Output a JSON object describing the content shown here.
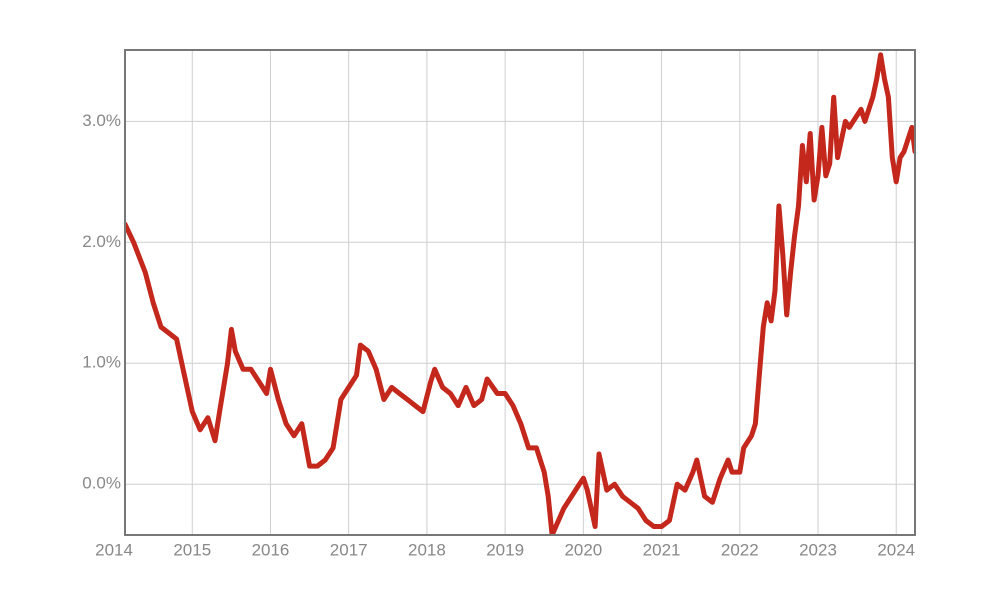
{
  "chart_data": {
    "type": "line",
    "x": [
      2014.14,
      2014.25,
      2014.4,
      2014.5,
      2014.6,
      2014.7,
      2014.8,
      2014.9,
      2015.0,
      2015.1,
      2015.2,
      2015.29,
      2015.35,
      2015.45,
      2015.5,
      2015.55,
      2015.65,
      2015.75,
      2015.85,
      2015.95,
      2016.0,
      2016.1,
      2016.2,
      2016.3,
      2016.4,
      2016.5,
      2016.6,
      2016.7,
      2016.8,
      2016.9,
      2017.0,
      2017.1,
      2017.15,
      2017.25,
      2017.35,
      2017.45,
      2017.55,
      2017.65,
      2017.75,
      2017.85,
      2017.95,
      2018.05,
      2018.1,
      2018.2,
      2018.3,
      2018.4,
      2018.5,
      2018.6,
      2018.7,
      2018.77,
      2018.9,
      2019.0,
      2019.1,
      2019.2,
      2019.3,
      2019.4,
      2019.5,
      2019.55,
      2019.6,
      2019.75,
      2019.85,
      2019.95,
      2020.0,
      2020.05,
      2020.15,
      2020.2,
      2020.3,
      2020.4,
      2020.5,
      2020.6,
      2020.7,
      2020.8,
      2020.9,
      2021.0,
      2021.1,
      2021.2,
      2021.3,
      2021.4,
      2021.45,
      2021.55,
      2021.65,
      2021.75,
      2021.85,
      2021.9,
      2022.0,
      2022.05,
      2022.15,
      2022.2,
      2022.25,
      2022.3,
      2022.35,
      2022.4,
      2022.45,
      2022.5,
      2022.55,
      2022.6,
      2022.65,
      2022.7,
      2022.75,
      2022.8,
      2022.85,
      2022.9,
      2022.95,
      2023.0,
      2023.05,
      2023.1,
      2023.15,
      2023.2,
      2023.25,
      2023.3,
      2023.35,
      2023.4,
      2023.45,
      2023.55,
      2023.6,
      2023.7,
      2023.75,
      2023.8,
      2023.85,
      2023.9,
      2023.95,
      2024.0,
      2024.05,
      2024.1,
      2024.2,
      2024.24
    ],
    "series": [
      {
        "color": "#c4281d",
        "values": [
          2.15,
          2.0,
          1.75,
          1.5,
          1.3,
          1.25,
          1.2,
          0.9,
          0.6,
          0.45,
          0.55,
          0.36,
          0.6,
          1.0,
          1.28,
          1.1,
          0.95,
          0.95,
          0.85,
          0.75,
          0.95,
          0.7,
          0.5,
          0.4,
          0.5,
          0.15,
          0.15,
          0.2,
          0.3,
          0.7,
          0.8,
          0.9,
          1.15,
          1.1,
          0.95,
          0.7,
          0.8,
          0.75,
          0.7,
          0.65,
          0.6,
          0.85,
          0.95,
          0.8,
          0.75,
          0.65,
          0.8,
          0.65,
          0.7,
          0.87,
          0.75,
          0.75,
          0.65,
          0.5,
          0.3,
          0.3,
          0.1,
          -0.1,
          -0.42,
          -0.2,
          -0.1,
          0.0,
          0.05,
          -0.05,
          -0.35,
          0.25,
          -0.05,
          0.0,
          -0.1,
          -0.15,
          -0.2,
          -0.3,
          -0.35,
          -0.35,
          -0.3,
          0.0,
          -0.05,
          0.1,
          0.2,
          -0.1,
          -0.15,
          0.05,
          0.2,
          0.1,
          0.1,
          0.3,
          0.4,
          0.5,
          0.9,
          1.3,
          1.5,
          1.35,
          1.6,
          2.3,
          1.9,
          1.4,
          1.75,
          2.05,
          2.3,
          2.8,
          2.5,
          2.9,
          2.35,
          2.55,
          2.95,
          2.55,
          2.65,
          3.2,
          2.7,
          2.85,
          3.0,
          2.95,
          3.0,
          3.1,
          3.0,
          3.2,
          3.35,
          3.55,
          3.35,
          3.2,
          2.7,
          2.5,
          2.7,
          2.75,
          2.95,
          2.75
        ]
      }
    ],
    "xlim": [
      2014.14,
      2024.24
    ],
    "xticks": [
      2014,
      2015,
      2016,
      2017,
      2018,
      2019,
      2020,
      2021,
      2022,
      2023,
      2024
    ],
    "ylim": [
      -0.42,
      3.59
    ],
    "yticks": [
      {
        "value": 0,
        "label": "0.0%"
      },
      {
        "value": 1,
        "label": "1.0%"
      },
      {
        "value": 2,
        "label": "2.0%"
      },
      {
        "value": 3,
        "label": "3.0%"
      }
    ],
    "grid": true
  }
}
